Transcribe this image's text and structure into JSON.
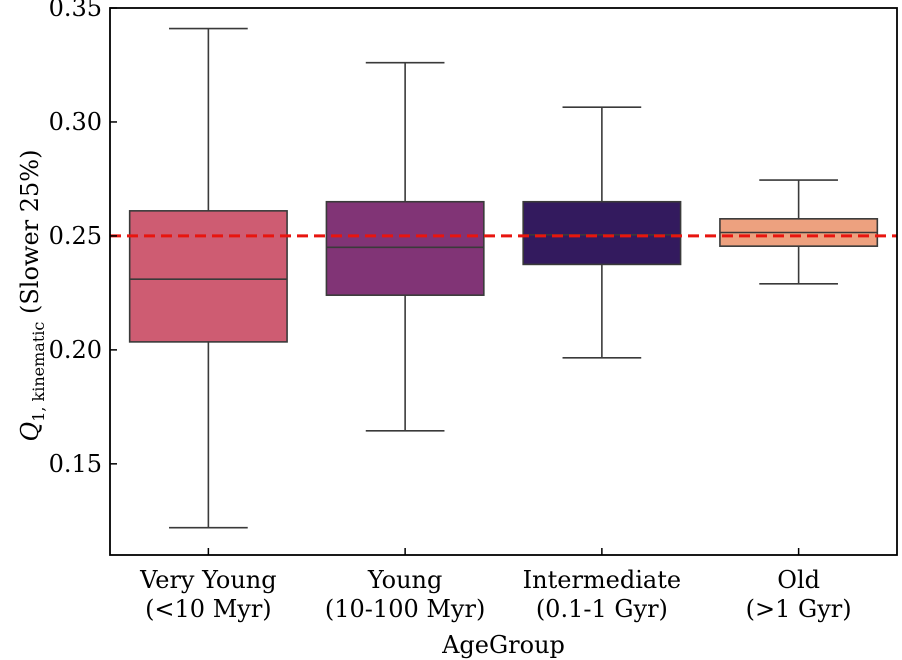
{
  "chart_data": {
    "type": "box",
    "xlabel": "AgeGroup",
    "ylabel": {
      "symbol": "Q",
      "subscript": "1, kinematic",
      "suffix": " (Slower 25%)"
    },
    "ylim": [
      0.11,
      0.35
    ],
    "yticks": [
      "0.15",
      "0.20",
      "0.25",
      "0.30",
      "0.35"
    ],
    "reference_line": {
      "y": 0.25,
      "color": "#e8150f",
      "style": "dashed"
    },
    "groups": [
      {
        "line1": "Very Young",
        "line2": "(<10 Myr)",
        "min": 0.122,
        "q1": 0.2035,
        "median": 0.231,
        "q3": 0.261,
        "max": 0.341,
        "color": "#ce5c72"
      },
      {
        "line1": "Young",
        "line2": "(10-100 Myr)",
        "min": 0.1645,
        "q1": 0.224,
        "median": 0.245,
        "q3": 0.265,
        "max": 0.326,
        "color": "#813476"
      },
      {
        "line1": "Intermediate",
        "line2": "(0.1-1 Gyr)",
        "min": 0.1965,
        "q1": 0.2375,
        "median": 0.2505,
        "q3": 0.265,
        "max": 0.3065,
        "color": "#331a5e"
      },
      {
        "line1": "Old",
        "line2": "(>1 Gyr)",
        "min": 0.229,
        "q1": 0.2455,
        "median": 0.2515,
        "q3": 0.2575,
        "max": 0.2745,
        "color": "#eda17f"
      }
    ]
  }
}
